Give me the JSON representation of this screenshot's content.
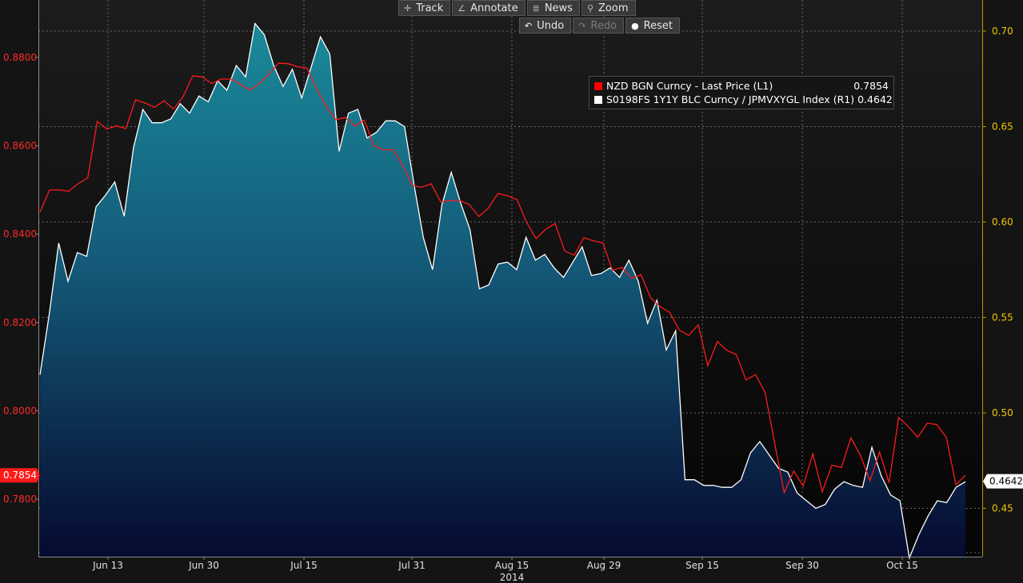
{
  "toolbar": {
    "track": "Track",
    "annotate": "Annotate",
    "news": "News",
    "zoom": "Zoom",
    "undo": "Undo",
    "redo": "Redo",
    "reset": "Reset"
  },
  "legend": [
    {
      "name": "NZD BGN Curncy - Last Price (L1)",
      "value": "0.7854",
      "color": "#ff0000"
    },
    {
      "name": "S0198FS 1Y1Y BLC Curncy / JPMVXYGL Index (R1)",
      "value": "0.4642",
      "color": "#ffffff"
    }
  ],
  "chart_data": {
    "type": "line",
    "x_tick_labels": [
      "Jun 13",
      "Jun 30",
      "Jul 15",
      "Jul 31",
      "Aug 15",
      "Aug 29",
      "Sep 15",
      "Sep 30",
      "Oct 15"
    ],
    "x_year_label": "2014",
    "left_axis": {
      "ticks": [
        "0.8800",
        "0.8600",
        "0.8400",
        "0.8200",
        "0.8000",
        "0.7800"
      ],
      "range": [
        0.767,
        0.893
      ],
      "color": "#ff2a2a"
    },
    "right_axis": {
      "ticks": [
        "0.70",
        "0.65",
        "0.60",
        "0.55",
        "0.50",
        "0.45"
      ],
      "range": [
        0.4247,
        0.7163
      ],
      "color": "#f0c800"
    },
    "last_value_labels": {
      "left": "0.7854",
      "right": "0.4642"
    },
    "grid": true,
    "legend_position": "top-right",
    "series": [
      {
        "name": "NZD BGN Curncy - Last Price (L1)",
        "axis": "left",
        "color": "#ff0000",
        "values": [
          0.845,
          0.85,
          0.85,
          0.8497,
          0.8514,
          0.8527,
          0.8655,
          0.8638,
          0.8645,
          0.8639,
          0.8704,
          0.8697,
          0.8687,
          0.8702,
          0.8683,
          0.8711,
          0.8758,
          0.8756,
          0.8741,
          0.8751,
          0.8751,
          0.8739,
          0.8726,
          0.8741,
          0.8762,
          0.8787,
          0.8786,
          0.8779,
          0.8776,
          0.8728,
          0.8689,
          0.8659,
          0.8664,
          0.8645,
          0.8658,
          0.86,
          0.8591,
          0.8591,
          0.8556,
          0.851,
          0.8506,
          0.8514,
          0.8473,
          0.8476,
          0.8476,
          0.8467,
          0.844,
          0.8459,
          0.8492,
          0.8487,
          0.8478,
          0.8427,
          0.839,
          0.8411,
          0.8424,
          0.8362,
          0.8352,
          0.8392,
          0.8385,
          0.838,
          0.8318,
          0.8325,
          0.83,
          0.8308,
          0.8256,
          0.8236,
          0.8223,
          0.8183,
          0.8171,
          0.8195,
          0.8102,
          0.8157,
          0.8137,
          0.8127,
          0.807,
          0.8082,
          0.8042,
          0.7928,
          0.7815,
          0.7864,
          0.783,
          0.7903,
          0.7817,
          0.7877,
          0.7872,
          0.7939,
          0.7899,
          0.7842,
          0.7907,
          0.7837,
          0.7985,
          0.7965,
          0.794,
          0.7972,
          0.7969,
          0.794,
          0.7833,
          0.7854
        ]
      },
      {
        "name": "S0198FS 1Y1Y BLC Curncy / JPMVXYGL Index (R1)",
        "axis": "right",
        "color": "#ffffff",
        "values": [
          0.52,
          0.552,
          0.589,
          0.569,
          0.584,
          0.582,
          0.608,
          0.614,
          0.621,
          0.603,
          0.639,
          0.659,
          0.652,
          0.652,
          0.654,
          0.662,
          0.657,
          0.666,
          0.663,
          0.674,
          0.669,
          0.682,
          0.676,
          0.704,
          0.698,
          0.682,
          0.671,
          0.68,
          0.665,
          0.681,
          0.697,
          0.688,
          0.637,
          0.657,
          0.659,
          0.644,
          0.647,
          0.653,
          0.653,
          0.65,
          0.62,
          0.592,
          0.575,
          0.609,
          0.626,
          0.61,
          0.596,
          0.565,
          0.567,
          0.578,
          0.579,
          0.575,
          0.592,
          0.58,
          0.583,
          0.576,
          0.571,
          0.579,
          0.587,
          0.572,
          0.573,
          0.576,
          0.571,
          0.58,
          0.569,
          0.547,
          0.559,
          0.533,
          0.543,
          0.465,
          0.465,
          0.462,
          0.462,
          0.461,
          0.461,
          0.465,
          0.479,
          0.485,
          0.478,
          0.471,
          0.469,
          0.458,
          0.454,
          0.45,
          0.452,
          0.46,
          0.464,
          0.462,
          0.461,
          0.482,
          0.467,
          0.457,
          0.454,
          0.424,
          0.436,
          0.446,
          0.454,
          0.453,
          0.461,
          0.464
        ]
      }
    ]
  }
}
